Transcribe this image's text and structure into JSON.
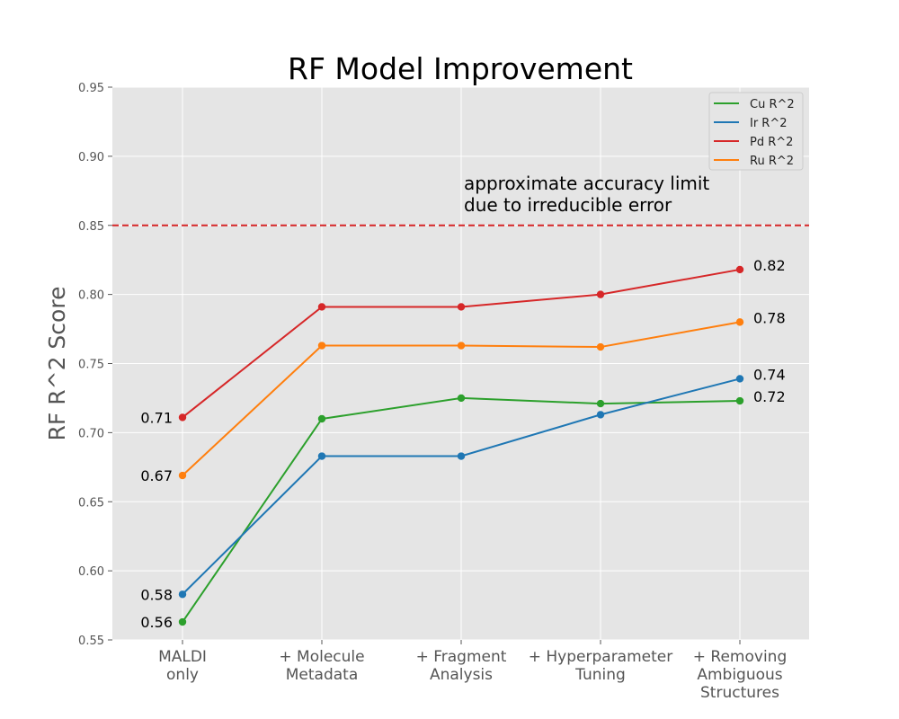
{
  "chart_data": {
    "type": "line",
    "title": "RF Model Improvement",
    "xlabel": "",
    "ylabel": "RF R^2 Score",
    "ylim": [
      0.55,
      0.95
    ],
    "yticks": [
      "0.55",
      "0.60",
      "0.65",
      "0.70",
      "0.75",
      "0.80",
      "0.85",
      "0.90",
      "0.95"
    ],
    "categories": [
      [
        "MALDI",
        "only"
      ],
      [
        "+ Molecule",
        "Metadata"
      ],
      [
        "+ Fragment",
        "Analysis"
      ],
      [
        "+ Hyperparameter",
        "Tuning"
      ],
      [
        "+  Removing",
        "Ambiguous",
        "Structures"
      ]
    ],
    "grid": true,
    "legend_position": "top-right",
    "series": [
      {
        "name": "Cu R^2",
        "color": "#2ca02c",
        "values": [
          0.563,
          0.71,
          0.725,
          0.721,
          0.723
        ]
      },
      {
        "name": "Ir R^2",
        "color": "#1f77b4",
        "values": [
          0.583,
          0.683,
          0.683,
          0.713,
          0.739
        ]
      },
      {
        "name": "Pd R^2",
        "color": "#d62728",
        "values": [
          0.711,
          0.791,
          0.791,
          0.8,
          0.818
        ]
      },
      {
        "name": "Ru R^2",
        "color": "#ff7f0e",
        "values": [
          0.669,
          0.763,
          0.763,
          0.762,
          0.78
        ]
      }
    ],
    "data_labels": [
      {
        "text": "0.71",
        "series": 2,
        "index": 0,
        "side": "left"
      },
      {
        "text": "0.67",
        "series": 3,
        "index": 0,
        "side": "left"
      },
      {
        "text": "0.58",
        "series": 1,
        "index": 0,
        "side": "left"
      },
      {
        "text": "0.56",
        "series": 0,
        "index": 0,
        "side": "left"
      },
      {
        "text": "0.82",
        "series": 2,
        "index": 4,
        "side": "right"
      },
      {
        "text": "0.78",
        "series": 3,
        "index": 4,
        "side": "right"
      },
      {
        "text": "0.74",
        "series": 1,
        "index": 4,
        "side": "right"
      },
      {
        "text": "0.72",
        "series": 0,
        "index": 4,
        "side": "right"
      }
    ],
    "reference_line": {
      "y": 0.85,
      "color": "#d62728",
      "style": "dashed"
    },
    "annotation": {
      "lines": [
        "approximate accuracy limit",
        "due to irreducible error"
      ],
      "x_category_index": 2,
      "y": 0.85
    },
    "colors": {
      "plot_background": "#e5e5e5",
      "grid": "#ffffff",
      "axis_text": "#555555"
    }
  }
}
